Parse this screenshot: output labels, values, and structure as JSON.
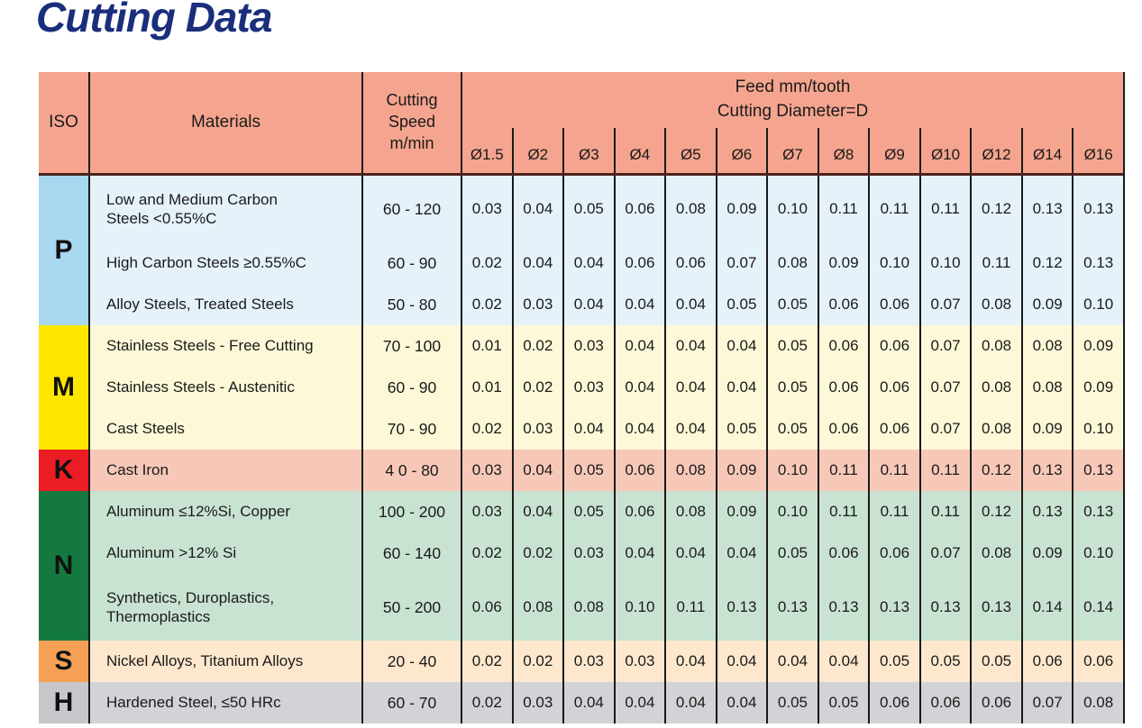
{
  "page": {
    "title": "Cutting Data"
  },
  "colors": {
    "title_color": "#1b2e7b",
    "header_bg": "#f5a58f",
    "header_border": "#4a241d",
    "grid_color": "#1a1a1a"
  },
  "table": {
    "headers": {
      "iso": "ISO",
      "materials": "Materials",
      "cutting_speed": "Cutting\nSpeed\nm/min",
      "feed_title": [
        "Feed mm/tooth",
        "Cutting Diameter=D"
      ],
      "diameters": [
        "Ø1.5",
        "Ø2",
        "Ø3",
        "Ø4",
        "Ø5",
        "Ø6",
        "Ø7",
        "Ø8",
        "Ø9",
        "Ø10",
        "Ø12",
        "Ø14",
        "Ø16"
      ]
    },
    "groups": [
      {
        "iso": "P",
        "iso_bg": "#a8d8f0",
        "row_bg": "#e5f2fa",
        "rows": [
          {
            "material": "Low and Medium Carbon\nSteels <0.55%C",
            "speed": "60 - 120",
            "feeds": [
              "0.03",
              "0.04",
              "0.05",
              "0.06",
              "0.08",
              "0.09",
              "0.10",
              "0.11",
              "0.11",
              "0.11",
              "0.12",
              "0.13",
              "0.13"
            ]
          },
          {
            "material": "High Carbon Steels ≥0.55%C",
            "speed": "60 - 90",
            "feeds": [
              "0.02",
              "0.04",
              "0.04",
              "0.06",
              "0.06",
              "0.07",
              "0.08",
              "0.09",
              "0.10",
              "0.10",
              "0.11",
              "0.12",
              "0.13"
            ]
          },
          {
            "material": "Alloy Steels, Treated Steels",
            "speed": "50 - 80",
            "feeds": [
              "0.02",
              "0.03",
              "0.04",
              "0.04",
              "0.04",
              "0.05",
              "0.05",
              "0.06",
              "0.06",
              "0.07",
              "0.08",
              "0.09",
              "0.10"
            ]
          }
        ]
      },
      {
        "iso": "M",
        "iso_bg": "#ffe600",
        "row_bg": "#fdf9d8",
        "rows": [
          {
            "material": "Stainless Steels - Free Cutting",
            "speed": "70 - 100",
            "feeds": [
              "0.01",
              "0.02",
              "0.03",
              "0.04",
              "0.04",
              "0.04",
              "0.05",
              "0.06",
              "0.06",
              "0.07",
              "0.08",
              "0.08",
              "0.09"
            ]
          },
          {
            "material": "Stainless Steels - Austenitic",
            "speed": "60 - 90",
            "feeds": [
              "0.01",
              "0.02",
              "0.03",
              "0.04",
              "0.04",
              "0.04",
              "0.05",
              "0.06",
              "0.06",
              "0.07",
              "0.08",
              "0.08",
              "0.09"
            ]
          },
          {
            "material": "Cast Steels",
            "speed": "70 - 90",
            "feeds": [
              "0.02",
              "0.03",
              "0.04",
              "0.04",
              "0.04",
              "0.05",
              "0.05",
              "0.06",
              "0.06",
              "0.07",
              "0.08",
              "0.09",
              "0.10"
            ]
          }
        ]
      },
      {
        "iso": "K",
        "iso_bg": "#ec1c24",
        "row_bg": "#f7c8b8",
        "rows": [
          {
            "material": "Cast Iron",
            "speed": "4 0 - 80",
            "feeds": [
              "0.03",
              "0.04",
              "0.05",
              "0.06",
              "0.08",
              "0.09",
              "0.10",
              "0.11",
              "0.11",
              "0.11",
              "0.12",
              "0.13",
              "0.13"
            ]
          }
        ]
      },
      {
        "iso": "N",
        "iso_bg": "#14793f",
        "row_bg": "#c9e3d2",
        "rows": [
          {
            "material": "Aluminum ≤12%Si, Copper",
            "speed": "100 - 200",
            "feeds": [
              "0.03",
              "0.04",
              "0.05",
              "0.06",
              "0.08",
              "0.09",
              "0.10",
              "0.11",
              "0.11",
              "0.11",
              "0.12",
              "0.13",
              "0.13"
            ]
          },
          {
            "material": "Aluminum >12% Si",
            "speed": "60 - 140",
            "feeds": [
              "0.02",
              "0.02",
              "0.03",
              "0.04",
              "0.04",
              "0.04",
              "0.05",
              "0.06",
              "0.06",
              "0.07",
              "0.08",
              "0.09",
              "0.10"
            ]
          },
          {
            "material": "Synthetics, Duroplastics,\nThermoplastics",
            "speed": "50 - 200",
            "feeds": [
              "0.06",
              "0.08",
              "0.08",
              "0.10",
              "0.11",
              "0.13",
              "0.13",
              "0.13",
              "0.13",
              "0.13",
              "0.13",
              "0.14",
              "0.14"
            ]
          }
        ]
      },
      {
        "iso": "S",
        "iso_bg": "#f5a055",
        "row_bg": "#fde8cd",
        "rows": [
          {
            "material": "Nickel Alloys, Titanium Alloys",
            "speed": "20 - 40",
            "feeds": [
              "0.02",
              "0.02",
              "0.03",
              "0.03",
              "0.04",
              "0.04",
              "0.04",
              "0.04",
              "0.05",
              "0.05",
              "0.05",
              "0.06",
              "0.06"
            ]
          }
        ]
      },
      {
        "iso": "H",
        "iso_bg": "#c7c7cb",
        "row_bg": "#d3d3d7",
        "rows": [
          {
            "material": "Hardened Steel, ≤50 HRc",
            "speed": "60 - 70",
            "feeds": [
              "0.02",
              "0.03",
              "0.04",
              "0.04",
              "0.04",
              "0.04",
              "0.05",
              "0.05",
              "0.06",
              "0.06",
              "0.06",
              "0.07",
              "0.08"
            ]
          }
        ]
      }
    ]
  }
}
